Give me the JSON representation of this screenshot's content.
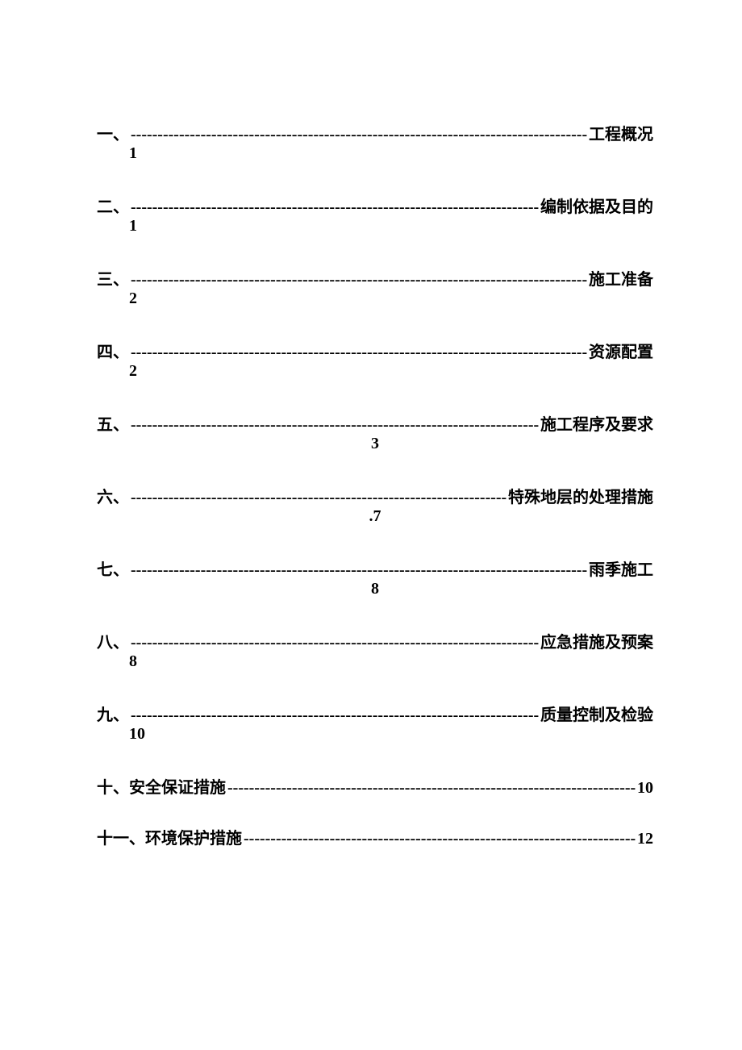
{
  "toc": {
    "entries": [
      {
        "marker": "一、",
        "title": "工程概况",
        "page": "1",
        "pagePos": "left"
      },
      {
        "marker": "二、",
        "title": "编制依据及目的",
        "page": "1",
        "pagePos": "left"
      },
      {
        "marker": "三、",
        "title": "施工准备",
        "page": "2",
        "pagePos": "left"
      },
      {
        "marker": "四、",
        "title": "资源配置",
        "page": "2",
        "pagePos": "left"
      },
      {
        "marker": "五、",
        "title": "施工程序及要求",
        "page": "3",
        "pagePos": "center"
      },
      {
        "marker": "六、",
        "title": "特殊地层的处理措施",
        "page": ".7",
        "pagePos": "center"
      },
      {
        "marker": "七、",
        "title": "雨季施工",
        "page": "8",
        "pagePos": "center"
      },
      {
        "marker": "八、",
        "title": "应急措施及预案",
        "page": "8",
        "pagePos": "left"
      },
      {
        "marker": "九、",
        "title": "质量控制及检验",
        "page": "10",
        "pagePos": "left"
      }
    ],
    "inlineEntries": [
      {
        "marker": "十、",
        "titleFirst": "安全保证措施 ",
        "page": "10"
      },
      {
        "marker": "十一、",
        "titleFirst": "环境保护措施 ",
        "page": "12"
      }
    ]
  },
  "style": {
    "textColor": "#000000",
    "backgroundColor": "#ffffff",
    "fontSize": 20,
    "dashFill": "------------------------------------------------------------------------------------------------------------------------"
  }
}
